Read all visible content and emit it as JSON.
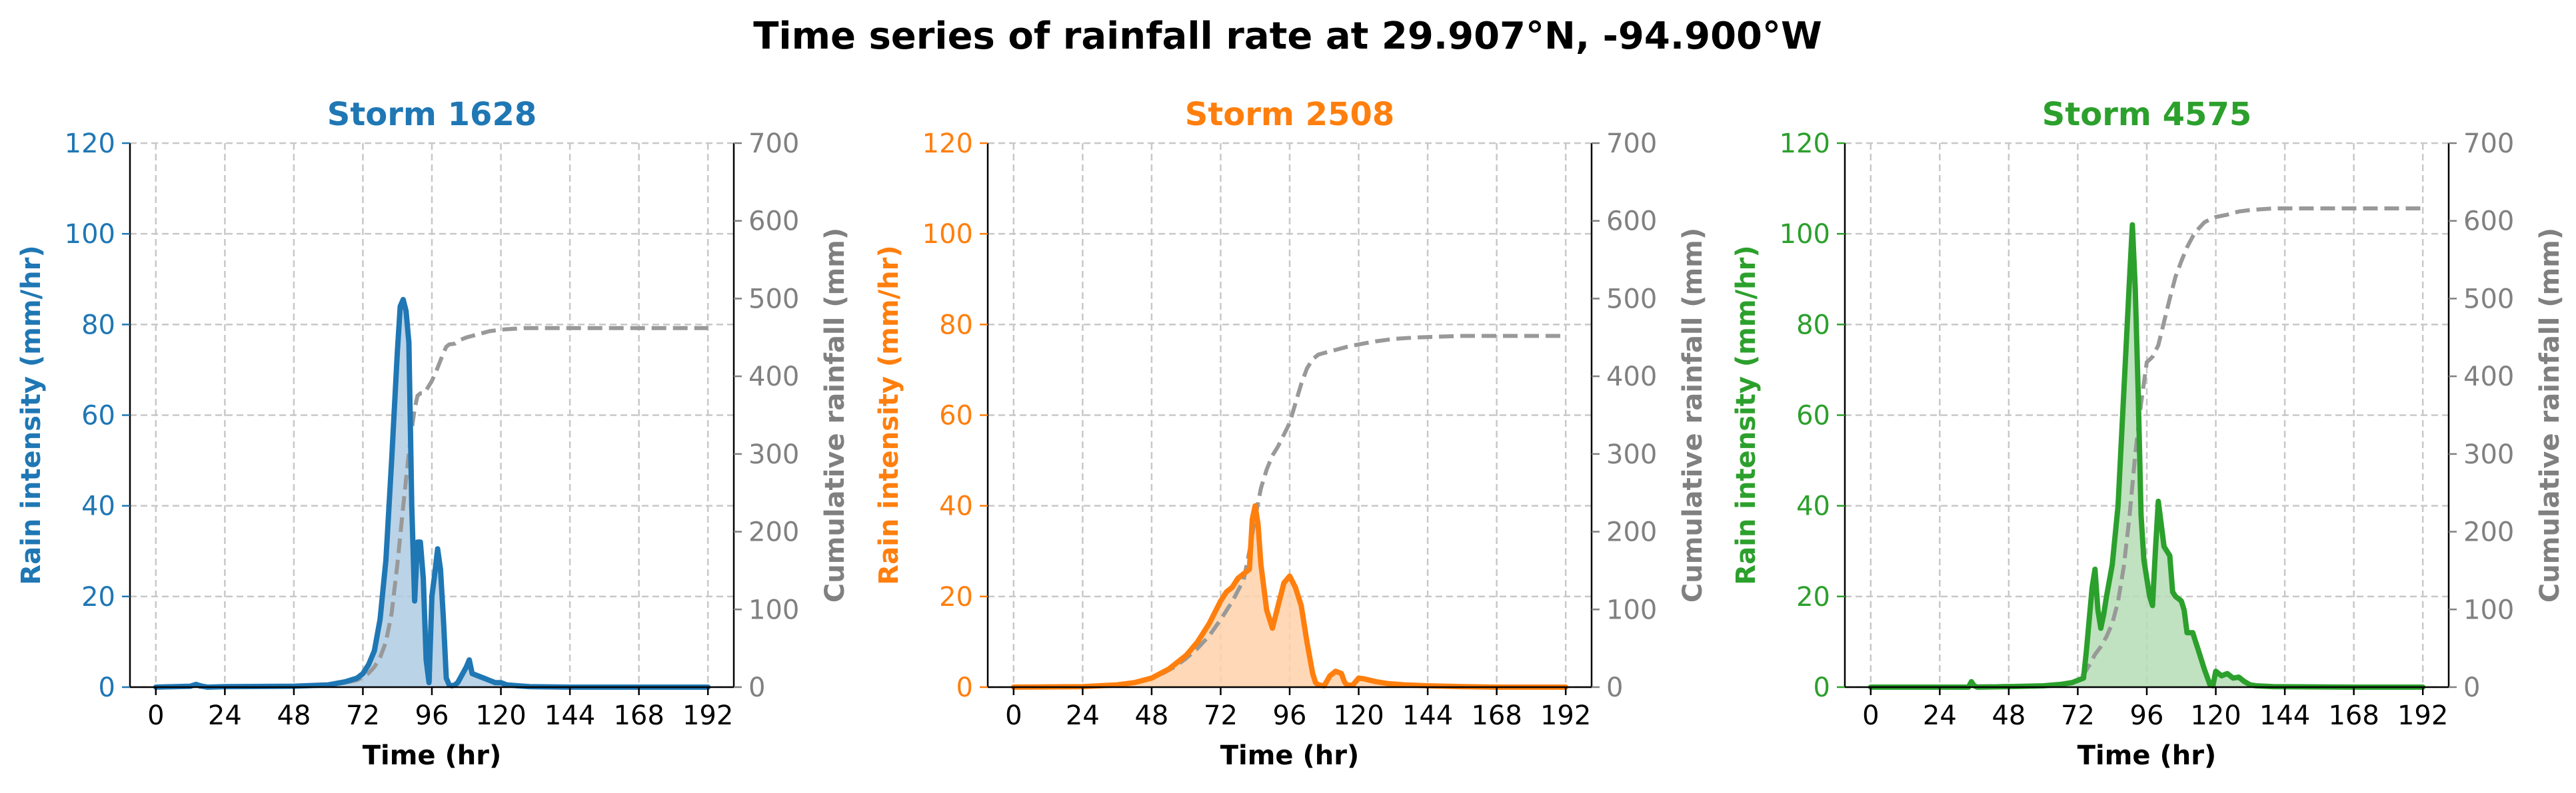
{
  "figure_title": "Time series of rainfall rate at 29.907°N, -94.900°W",
  "colors": {
    "cumulative_line": "#999999",
    "cumulative_axis": "#808080",
    "grid": "#c8c8c8",
    "axis": "#000000"
  },
  "chart_data": [
    {
      "type": "line",
      "title": "Storm 1628",
      "color": "#1f77b4",
      "fill": "#aecbe3",
      "xlabel": "Time (hr)",
      "ylabel": "Rain intensity (mm/hr)",
      "y2label": "Cumulative rainfall (mm)",
      "xticks": [
        0,
        24,
        48,
        72,
        96,
        120,
        144,
        168,
        192
      ],
      "xlim": [
        -9,
        201
      ],
      "ylim": [
        0,
        120
      ],
      "yticks": [
        0,
        20,
        40,
        60,
        80,
        100,
        120
      ],
      "y2lim": [
        0,
        700
      ],
      "y2ticks": [
        0,
        100,
        200,
        300,
        400,
        500,
        600,
        700
      ],
      "grid": true,
      "series": [
        {
          "x": [
            0,
            12,
            14,
            16,
            18,
            24,
            48,
            60,
            66,
            70,
            72,
            74,
            76,
            78,
            80,
            82,
            84,
            85,
            86,
            87,
            88,
            89,
            90,
            91,
            92,
            93,
            94,
            95,
            96,
            97,
            98,
            99,
            100,
            101,
            102,
            103,
            104,
            105,
            108,
            109,
            110,
            112,
            114,
            116,
            118,
            120,
            122,
            126,
            130,
            144,
            168,
            192
          ],
          "y": [
            0,
            0.2,
            0.6,
            0.2,
            0,
            0.1,
            0.2,
            0.5,
            1.2,
            2,
            3,
            5,
            8,
            15,
            28,
            50,
            74,
            84,
            85.5,
            83,
            76,
            40,
            19,
            32,
            32,
            24,
            6,
            1,
            20,
            25,
            30.5,
            26,
            15,
            2,
            0.5,
            0.3,
            0.5,
            1,
            4.5,
            6,
            3,
            2.5,
            2,
            1.5,
            1,
            1,
            0.5,
            0.3,
            0.1,
            0,
            0,
            0
          ]
        },
        {
          "x": [
            0,
            24,
            48,
            60,
            66,
            70,
            72,
            74,
            76,
            78,
            80,
            82,
            84,
            86,
            88,
            89,
            90,
            91,
            92,
            93,
            94,
            96,
            98,
            100,
            101,
            102,
            104,
            106,
            108,
            110,
            112,
            114,
            116,
            118,
            120,
            124,
            128,
            132,
            144,
            168,
            192
          ],
          "y": [
            0,
            0.5,
            1,
            3,
            6,
            9,
            13,
            18,
            26,
            38,
            58,
            95,
            158,
            232,
            302,
            332,
            358,
            375,
            378,
            378,
            382,
            394,
            411,
            430,
            438,
            441,
            442,
            447,
            450,
            452,
            454,
            456,
            458,
            459,
            460,
            461,
            462,
            462,
            462,
            462,
            462
          ]
        }
      ]
    },
    {
      "type": "line",
      "title": "Storm 2508",
      "color": "#ff7f0e",
      "fill": "#ffd2aa",
      "xlabel": "Time (hr)",
      "ylabel": "Rain intensity (mm/hr)",
      "y2label": "Cumulative rainfall (mm)",
      "xticks": [
        0,
        24,
        48,
        72,
        96,
        120,
        144,
        168,
        192
      ],
      "xlim": [
        -9,
        201
      ],
      "ylim": [
        0,
        120
      ],
      "yticks": [
        0,
        20,
        40,
        60,
        80,
        100,
        120
      ],
      "y2lim": [
        0,
        700
      ],
      "y2ticks": [
        0,
        100,
        200,
        300,
        400,
        500,
        600,
        700
      ],
      "grid": true,
      "series": [
        {
          "x": [
            0,
            24,
            36,
            42,
            48,
            54,
            60,
            64,
            68,
            72,
            74,
            76,
            78,
            80,
            82,
            83,
            84,
            85,
            86,
            88,
            90,
            92,
            94,
            96,
            98,
            100,
            102,
            104,
            105,
            106,
            108,
            110,
            112,
            114,
            115,
            116,
            118,
            120,
            122,
            126,
            130,
            136,
            144,
            156,
            168,
            192
          ],
          "y": [
            0,
            0.1,
            0.5,
            1,
            2,
            4,
            7,
            10,
            14,
            19,
            21,
            22,
            24,
            25,
            26,
            37,
            40,
            36,
            27,
            17,
            13,
            18,
            23,
            24.5,
            22,
            18,
            10,
            3,
            1,
            0.5,
            0.3,
            2.5,
            3.5,
            3,
            1.2,
            0.4,
            0.5,
            2,
            1.8,
            1.2,
            0.8,
            0.5,
            0.3,
            0.1,
            0,
            0
          ]
        },
        {
          "x": [
            0,
            24,
            36,
            42,
            48,
            52,
            56,
            60,
            64,
            68,
            72,
            76,
            80,
            82,
            84,
            86,
            88,
            90,
            92,
            94,
            96,
            98,
            100,
            102,
            104,
            106,
            108,
            110,
            112,
            116,
            120,
            126,
            132,
            140,
            148,
            156,
            168,
            192
          ],
          "y": [
            0,
            0.5,
            2,
            6,
            12,
            18,
            26,
            37,
            50,
            66,
            87,
            110,
            138,
            175,
            218,
            256,
            280,
            298,
            310,
            325,
            340,
            365,
            390,
            410,
            422,
            428,
            430,
            432,
            434,
            438,
            441,
            445,
            448,
            450,
            451,
            452,
            452,
            452
          ]
        }
      ]
    },
    {
      "type": "line",
      "title": "Storm 4575",
      "color": "#2ca02c",
      "fill": "#b5ddb5",
      "xlabel": "Time (hr)",
      "ylabel": "Rain intensity (mm/hr)",
      "y2label": "Cumulative rainfall (mm)",
      "xticks": [
        0,
        24,
        48,
        72,
        96,
        120,
        144,
        168,
        192
      ],
      "xlim": [
        -9,
        201
      ],
      "ylim": [
        0,
        120
      ],
      "yticks": [
        0,
        20,
        40,
        60,
        80,
        100,
        120
      ],
      "y2lim": [
        0,
        700
      ],
      "y2ticks": [
        0,
        100,
        200,
        300,
        400,
        500,
        600,
        700
      ],
      "grid": true,
      "series": [
        {
          "x": [
            0,
            34,
            35,
            36,
            37,
            48,
            60,
            66,
            70,
            72,
            74,
            75,
            76,
            77,
            78,
            79,
            80,
            81,
            82,
            84,
            86,
            88,
            90,
            91,
            92,
            93,
            94,
            95,
            96,
            97,
            98,
            99,
            100,
            101,
            102,
            103,
            104,
            105,
            106,
            108,
            109,
            110,
            112,
            113,
            114,
            116,
            118,
            119,
            120,
            122,
            124,
            126,
            128,
            130,
            132,
            134,
            140,
            168,
            192
          ],
          "y": [
            0,
            0,
            1.2,
            0.3,
            0,
            0.1,
            0.3,
            0.6,
            1,
            1.5,
            2,
            8,
            15,
            22,
            26,
            17,
            13,
            16,
            20,
            27,
            40,
            65,
            90,
            102,
            88,
            65,
            38,
            28,
            24,
            20,
            18,
            30,
            41,
            36,
            31,
            30,
            29,
            21,
            20,
            19,
            17,
            12,
            12,
            10,
            8,
            4,
            0.5,
            0.3,
            3.5,
            2.5,
            3,
            2,
            2.2,
            1.2,
            0.5,
            0.3,
            0.1,
            0,
            0
          ]
        },
        {
          "x": [
            0,
            34,
            36,
            60,
            66,
            70,
            72,
            74,
            76,
            78,
            80,
            82,
            84,
            86,
            88,
            90,
            92,
            94,
            96,
            98,
            100,
            102,
            104,
            106,
            108,
            110,
            112,
            114,
            116,
            118,
            120,
            124,
            128,
            132,
            140,
            150,
            160,
            170,
            180,
            192
          ],
          "y": [
            0,
            0,
            1,
            2,
            4,
            6,
            9,
            16,
            28,
            42,
            52,
            65,
            82,
            110,
            155,
            220,
            300,
            365,
            418,
            425,
            440,
            470,
            500,
            528,
            548,
            566,
            580,
            590,
            598,
            602,
            605,
            608,
            612,
            614,
            616,
            616,
            616,
            616,
            616,
            616
          ]
        }
      ]
    }
  ]
}
